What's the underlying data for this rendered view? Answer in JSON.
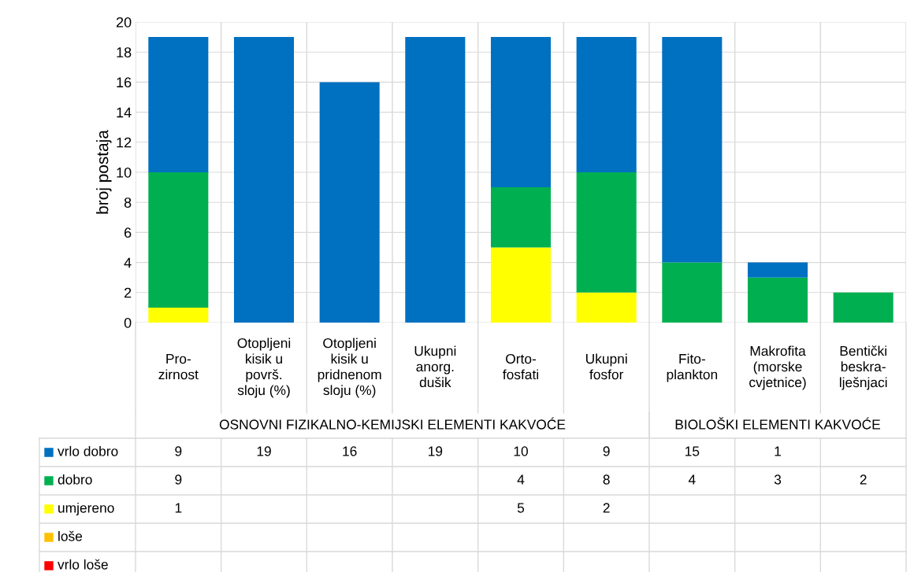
{
  "chart_data": {
    "type": "bar",
    "stacked": true,
    "ylabel": "broj postaja",
    "categories": [
      "Pro-\nzirnost",
      "Otopljeni\nkisik u\npovrš.\nsloju (%)",
      "Otopljeni\nkisik u\npridnenom\nsloju (%)",
      "Ukupni\nanorg.\ndušik",
      "Orto-\nfosfati",
      "Ukupni\nfosfor",
      "Fito-\nplankton",
      "Makrofita\n(morske\ncvjetnice)",
      "Bentički\nbeskra-\nlješnjaci"
    ],
    "series": [
      {
        "name": "vrlo loše",
        "color": "#ff0000",
        "values": [
          null,
          null,
          null,
          null,
          null,
          null,
          null,
          null,
          null
        ]
      },
      {
        "name": "loše",
        "color": "#ffc000",
        "values": [
          null,
          null,
          null,
          null,
          null,
          null,
          null,
          null,
          null
        ]
      },
      {
        "name": "umjereno",
        "color": "#ffff00",
        "values": [
          1,
          null,
          null,
          null,
          5,
          2,
          null,
          null,
          null
        ]
      },
      {
        "name": "dobro",
        "color": "#00b050",
        "values": [
          9,
          null,
          null,
          null,
          4,
          8,
          4,
          3,
          2
        ]
      },
      {
        "name": "vrlo dobro",
        "color": "#0070c0",
        "values": [
          9,
          19,
          16,
          19,
          10,
          9,
          15,
          1,
          null
        ]
      }
    ],
    "annotations": [
      "OSNOVNI FIZIKALNO-KEMIJSKI ELEMENTI KAKVOĆE",
      "BIOLOŠKI ELEMENTI KAKVOĆE"
    ],
    "ylim": [
      0,
      20
    ],
    "yticks": [
      0,
      2,
      4,
      6,
      8,
      10,
      12,
      14,
      16,
      18,
      20
    ],
    "grid": "y",
    "legend": "bottom",
    "data_labels": true
  }
}
